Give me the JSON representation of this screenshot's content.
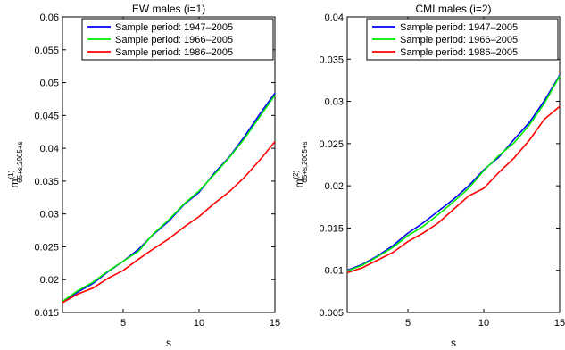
{
  "chart_data": [
    {
      "type": "line",
      "title": "EW males (i=1)",
      "xlabel": "s",
      "ylabel": {
        "base": "m",
        "sup": "(1)",
        "sub": "65+s,2005+s"
      },
      "xlim": [
        1,
        15
      ],
      "ylim": [
        0.015,
        0.06
      ],
      "xticks": [
        5,
        10,
        15
      ],
      "yticks": [
        0.015,
        0.02,
        0.025,
        0.03,
        0.035,
        0.04,
        0.045,
        0.05,
        0.055,
        0.06
      ],
      "ytick_labels": [
        "0.015",
        "0.02",
        "0.025",
        "0.03",
        "0.035",
        "0.04",
        "0.045",
        "0.05",
        "0.055",
        "0.06"
      ],
      "legend_position": "top-right",
      "x": [
        1,
        2,
        3,
        4,
        5,
        6,
        7,
        8,
        9,
        10,
        11,
        12,
        13,
        14,
        15
      ],
      "series": [
        {
          "name": "Sample period: 1947–2005",
          "color": "#0000ff",
          "values": [
            0.0166,
            0.0181,
            0.0194,
            0.0212,
            0.0228,
            0.0246,
            0.0269,
            0.0289,
            0.0314,
            0.0333,
            0.0362,
            0.0387,
            0.0418,
            0.0452,
            0.0484
          ]
        },
        {
          "name": "Sample period: 1966–2005",
          "color": "#00ee00",
          "values": [
            0.0167,
            0.0183,
            0.0196,
            0.0213,
            0.0228,
            0.0243,
            0.027,
            0.0291,
            0.0315,
            0.0335,
            0.036,
            0.0386,
            0.0415,
            0.0448,
            0.0481
          ]
        },
        {
          "name": "Sample period: 1986–2005",
          "color": "#ff0000",
          "values": [
            0.0165,
            0.0178,
            0.0187,
            0.0202,
            0.0214,
            0.0231,
            0.0247,
            0.0262,
            0.028,
            0.0296,
            0.0316,
            0.0334,
            0.0356,
            0.0382,
            0.041
          ]
        }
      ]
    },
    {
      "type": "line",
      "title": "CMI males (i=2)",
      "xlabel": "s",
      "ylabel": {
        "base": "m",
        "sup": "(2)",
        "sub": "65+s,2005+s"
      },
      "xlim": [
        1,
        15
      ],
      "ylim": [
        0.005,
        0.04
      ],
      "xticks": [
        5,
        10,
        15
      ],
      "yticks": [
        0.005,
        0.01,
        0.015,
        0.02,
        0.025,
        0.03,
        0.035,
        0.04
      ],
      "ytick_labels": [
        "0.005",
        "0.01",
        "0.015",
        "0.02",
        "0.025",
        "0.03",
        "0.035",
        "0.04"
      ],
      "legend_position": "top-right",
      "x": [
        1,
        2,
        3,
        4,
        5,
        6,
        7,
        8,
        9,
        10,
        11,
        12,
        13,
        14,
        15
      ],
      "series": [
        {
          "name": "Sample period: 1947–2005",
          "color": "#0000ff",
          "values": [
            0.01,
            0.0107,
            0.0117,
            0.0129,
            0.0144,
            0.0156,
            0.017,
            0.0184,
            0.02,
            0.0219,
            0.0234,
            0.0255,
            0.0275,
            0.0301,
            0.0331
          ]
        },
        {
          "name": "Sample period: 1966–2005",
          "color": "#00ee00",
          "values": [
            0.0099,
            0.0106,
            0.0116,
            0.0127,
            0.0141,
            0.0152,
            0.0166,
            0.0181,
            0.0197,
            0.0218,
            0.0236,
            0.0251,
            0.0272,
            0.0298,
            0.033
          ]
        },
        {
          "name": "Sample period: 1986–2005",
          "color": "#ff0000",
          "values": [
            0.0097,
            0.0103,
            0.0112,
            0.0121,
            0.0134,
            0.0144,
            0.0156,
            0.0172,
            0.0188,
            0.0197,
            0.0216,
            0.0233,
            0.0254,
            0.0279,
            0.0294
          ]
        }
      ]
    }
  ]
}
